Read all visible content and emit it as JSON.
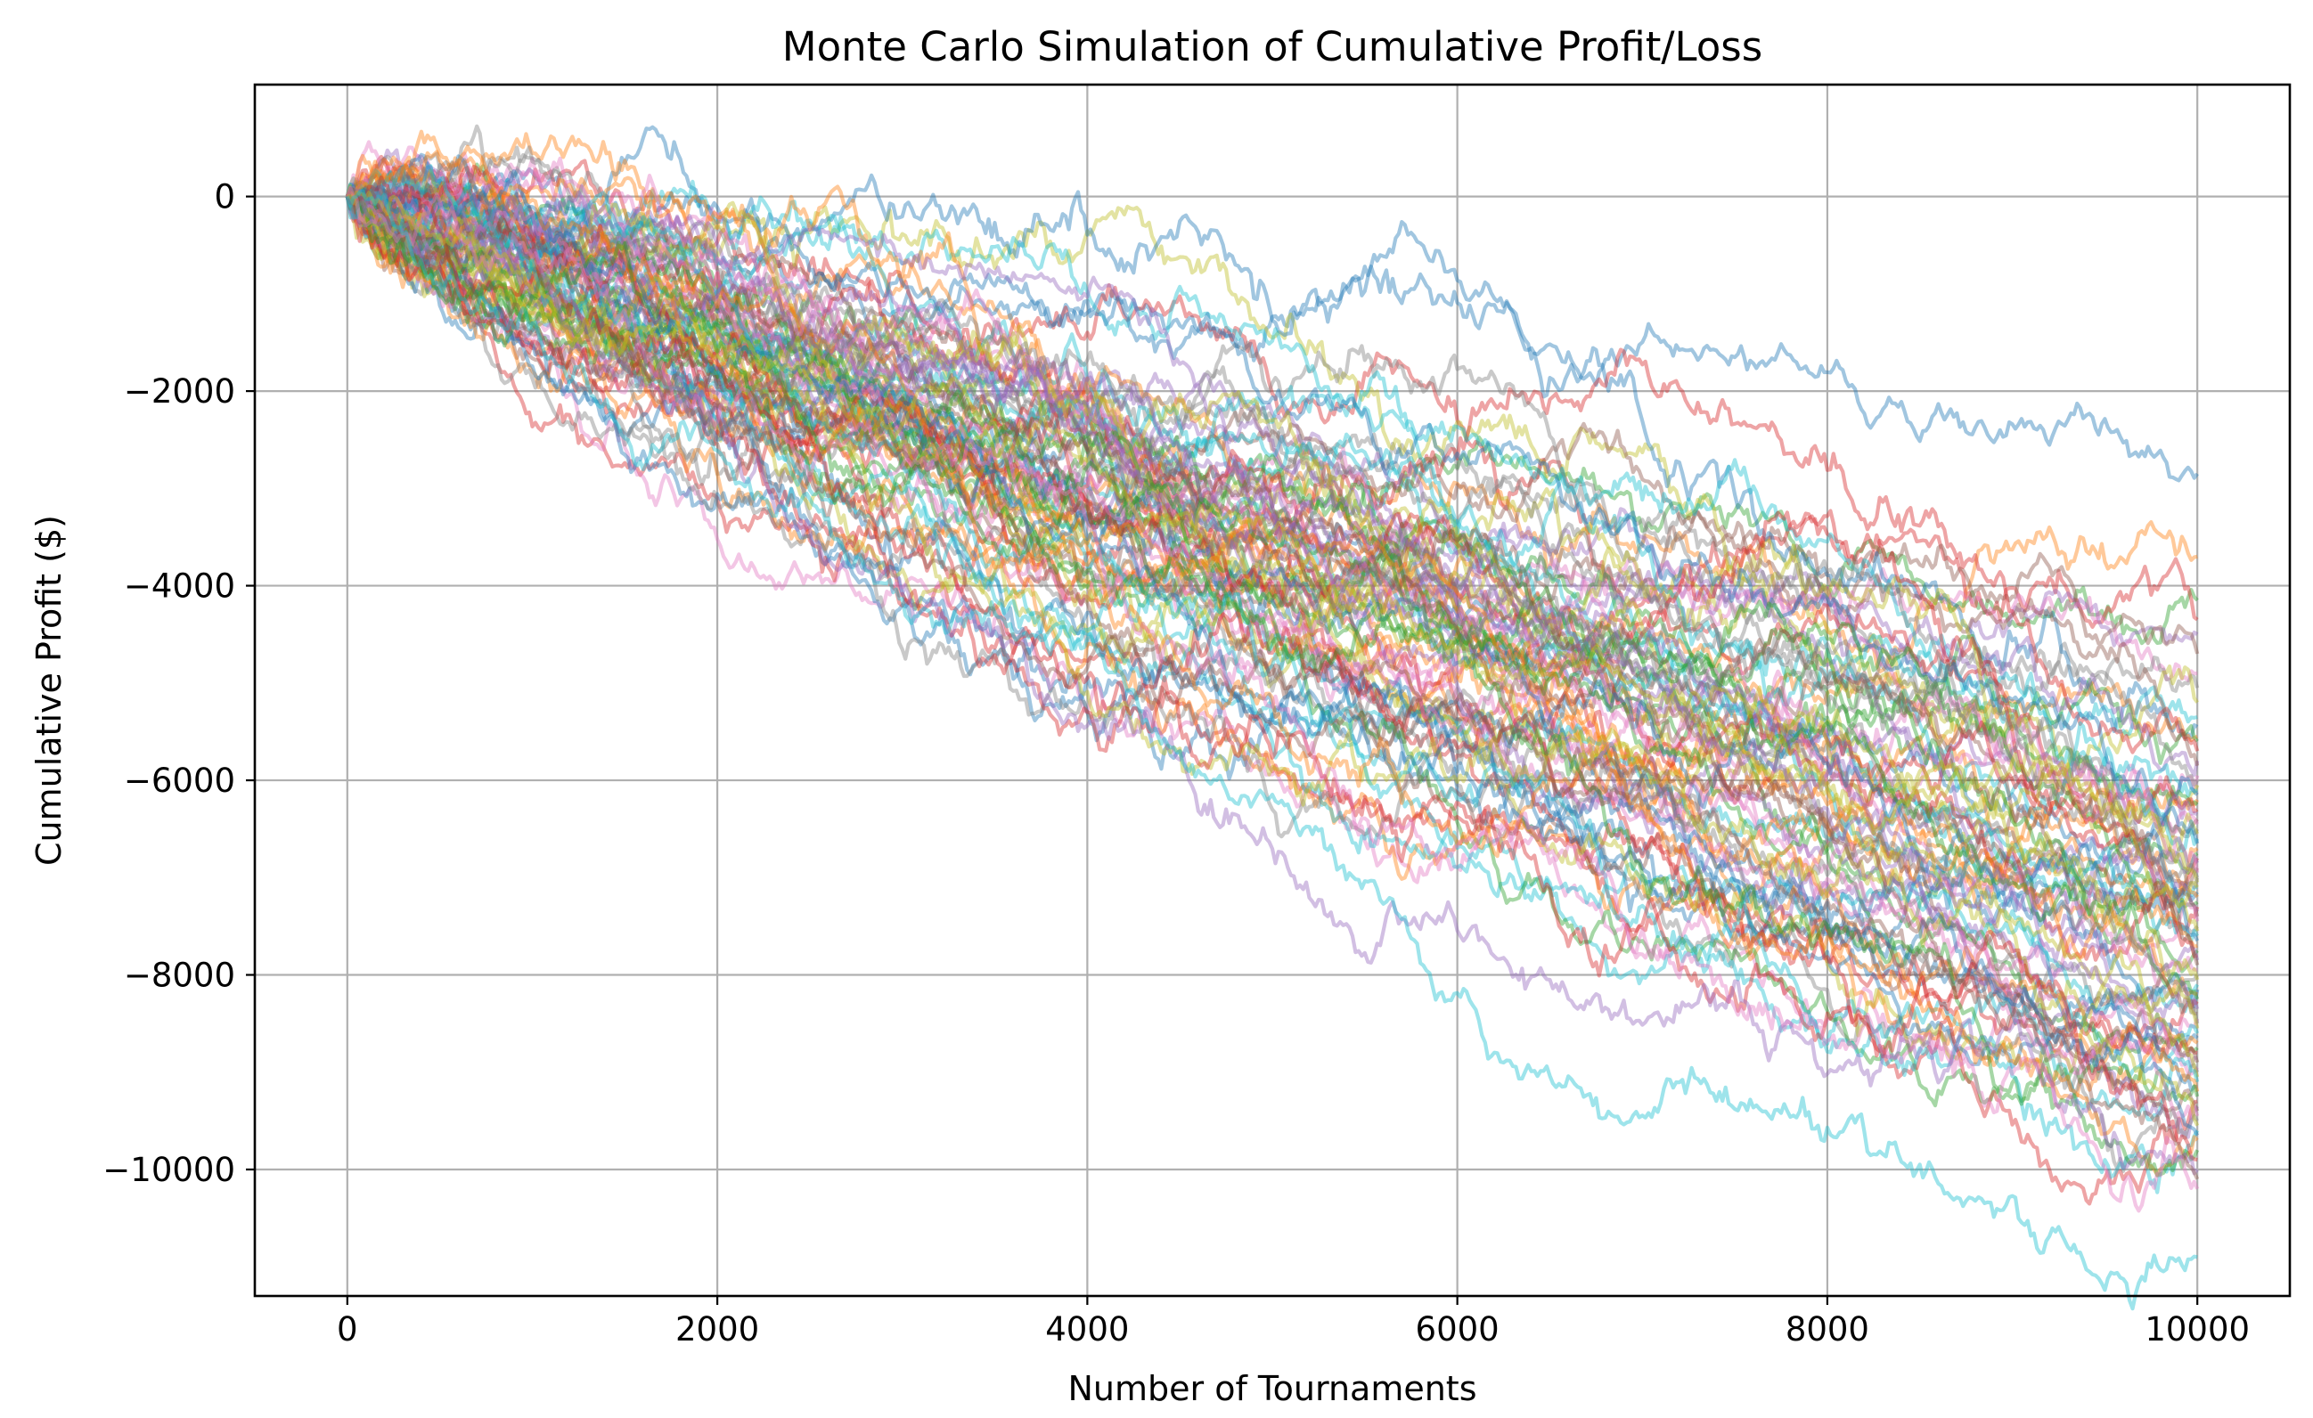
{
  "chart_data": {
    "type": "line",
    "title": "Monte Carlo Simulation of Cumulative Profit/Loss",
    "xlabel": "Number of Tournaments",
    "ylabel": "Cumulative Profit ($)",
    "xlim": [
      -500,
      10500
    ],
    "ylim": [
      -11300,
      1150
    ],
    "x_ticks": [
      0,
      2000,
      4000,
      6000,
      8000,
      10000
    ],
    "x_tick_labels": [
      "0",
      "2000",
      "4000",
      "6000",
      "8000",
      "10000"
    ],
    "y_ticks": [
      0,
      -2000,
      -4000,
      -6000,
      -8000,
      -10000
    ],
    "y_tick_labels": [
      "0",
      "−2000",
      "−4000",
      "−6000",
      "−8000",
      "−10000"
    ],
    "grid": true,
    "legend": "none",
    "num_simulations": 100,
    "x_range": [
      0,
      10000
    ],
    "start_value": 0,
    "series_opacity": 0.42,
    "palette": [
      "#1f77b4",
      "#ff7f0e",
      "#2ca02c",
      "#d62728",
      "#9467bd",
      "#8c564b",
      "#e377c2",
      "#7f7f7f",
      "#bcbd22",
      "#17becf"
    ],
    "series_x": [
      0,
      250,
      500,
      750,
      1000,
      1250,
      1500,
      1750,
      2000,
      2250,
      2500,
      2750,
      3000,
      3250,
      3500,
      3750,
      4000,
      4250,
      4500,
      4750,
      5000,
      5250,
      5500,
      5750,
      6000,
      6250,
      6500,
      6750,
      7000,
      7250,
      7500,
      7750,
      8000,
      8250,
      8500,
      8750,
      9000,
      9250,
      9500,
      9750,
      10000
    ],
    "final_values": [
      -2850,
      -3700,
      -4150,
      -4350,
      -4500,
      -4700,
      -4900,
      -5050,
      -5200,
      -5350,
      -5450,
      -5550,
      -5600,
      -5700,
      -5800,
      -5850,
      -5950,
      -6000,
      -6050,
      -6100,
      -6150,
      -6200,
      -6250,
      -6300,
      -6350,
      -6400,
      -6450,
      -6500,
      -6550,
      -6600,
      -6650,
      -6700,
      -6750,
      -6800,
      -6850,
      -6900,
      -6950,
      -7000,
      -7050,
      -7100,
      -7150,
      -7200,
      -7250,
      -7300,
      -7350,
      -7400,
      -7450,
      -7500,
      -7550,
      -7600,
      -7650,
      -7700,
      -7750,
      -7800,
      -7850,
      -7900,
      -7950,
      -8000,
      -8050,
      -8100,
      -8150,
      -8200,
      -8250,
      -8300,
      -8350,
      -8400,
      -8450,
      -8500,
      -8550,
      -8600,
      -8650,
      -8700,
      -8750,
      -8800,
      -8850,
      -8900,
      -8950,
      -9000,
      -9050,
      -9100,
      -9150,
      -9200,
      -9250,
      -9300,
      -9350,
      -9400,
      -9450,
      -9500,
      -9550,
      -9600,
      -9650,
      -9700,
      -9800,
      -9900,
      -10000,
      -10100,
      -10200,
      -7000,
      -7100,
      -10900
    ]
  }
}
